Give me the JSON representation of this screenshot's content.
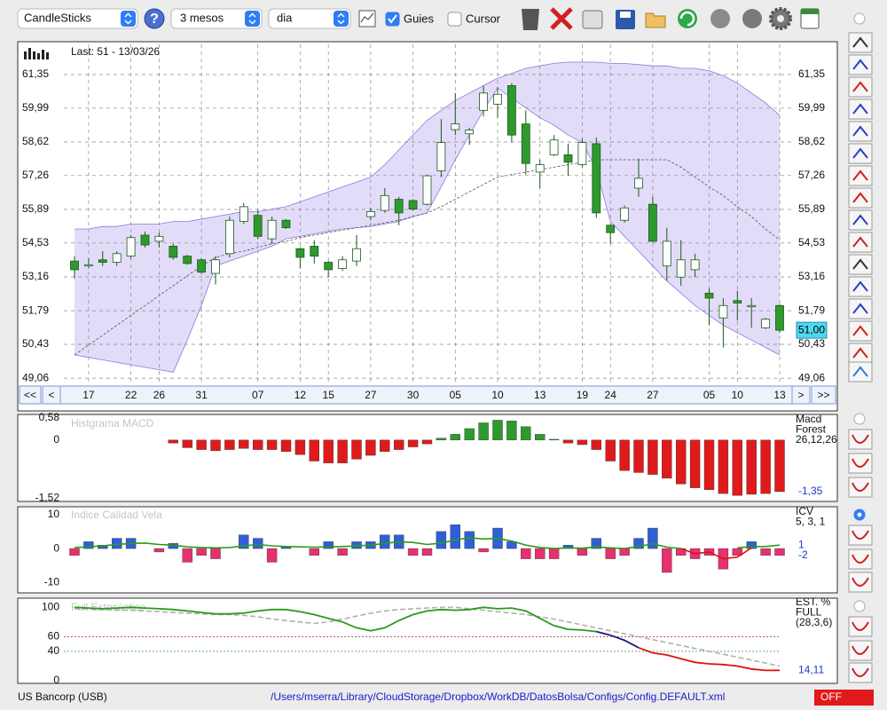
{
  "toolbar": {
    "chart_type": "CandleSticks",
    "help": "?",
    "period": "3 mesos",
    "interval": "dia",
    "guides": {
      "label": "Guies",
      "checked": true
    },
    "cursor": {
      "label": "Cursor",
      "checked": false
    }
  },
  "chart_data": [
    {
      "type": "candlestick",
      "title": "Last: 51 - 13/03/26",
      "categories": [
        null,
        "17",
        null,
        null,
        "22",
        null,
        "26",
        null,
        null,
        "31",
        null,
        null,
        null,
        "07",
        null,
        null,
        "12",
        null,
        "15",
        null,
        null,
        "27",
        null,
        null,
        "30",
        null,
        null,
        "05",
        null,
        null,
        "10",
        null,
        null,
        "13",
        null,
        null,
        "19",
        null,
        "24",
        null,
        null,
        "27",
        null,
        null,
        null,
        "05",
        null,
        "10",
        null,
        null,
        "13"
      ],
      "open": [
        53.8,
        53.6,
        53.85,
        53.75,
        54.0,
        54.85,
        54.6,
        54.4,
        54.0,
        53.85,
        53.3,
        54.1,
        55.4,
        55.65,
        54.7,
        55.45,
        54.3,
        54.4,
        53.75,
        53.5,
        53.8,
        55.6,
        55.85,
        56.3,
        56.25,
        56.1,
        57.45,
        59.12,
        58.95,
        59.9,
        60.15,
        60.9,
        59.35,
        57.4,
        58.1,
        58.1,
        57.7,
        58.55,
        55.25,
        55.45,
        56.75,
        56.1,
        53.6,
        53.15,
        53.45,
        52.5,
        51.5,
        52.2,
        51.95,
        51.1,
        52.0
      ],
      "high": [
        54.0,
        53.9,
        54.2,
        54.2,
        54.85,
        55.0,
        54.95,
        54.5,
        54.05,
        53.9,
        54.0,
        55.6,
        56.15,
        55.85,
        55.6,
        55.5,
        54.35,
        54.65,
        53.8,
        54.0,
        54.85,
        55.95,
        56.75,
        56.4,
        56.3,
        57.3,
        59.55,
        60.6,
        59.2,
        60.9,
        60.85,
        61.0,
        59.9,
        57.9,
        58.9,
        58.55,
        58.75,
        58.8,
        55.3,
        56.05,
        57.95,
        56.4,
        55.15,
        54.65,
        54.1,
        52.7,
        52.3,
        52.6,
        52.3,
        51.5,
        52.05
      ],
      "low": [
        53.1,
        53.5,
        53.6,
        53.6,
        53.9,
        54.35,
        54.35,
        53.85,
        53.65,
        53.3,
        52.85,
        53.95,
        55.3,
        54.7,
        54.5,
        55.1,
        53.5,
        53.7,
        53.15,
        53.4,
        53.6,
        55.45,
        55.75,
        55.25,
        55.85,
        56.05,
        57.2,
        58.9,
        58.5,
        59.65,
        59.6,
        58.6,
        57.3,
        56.75,
        58.05,
        57.25,
        57.6,
        55.55,
        54.5,
        55.35,
        56.4,
        54.55,
        53.0,
        52.8,
        53.15,
        51.2,
        50.3,
        51.4,
        51.1,
        51.05,
        50.9
      ],
      "close": [
        53.45,
        53.65,
        53.75,
        54.1,
        54.75,
        54.45,
        54.8,
        53.95,
        53.7,
        53.35,
        53.85,
        55.45,
        56.0,
        54.8,
        55.45,
        55.15,
        53.95,
        54.0,
        53.45,
        53.85,
        54.3,
        55.8,
        56.45,
        55.75,
        55.9,
        57.25,
        58.6,
        59.35,
        59.1,
        60.6,
        60.55,
        58.9,
        57.75,
        57.7,
        58.7,
        57.8,
        58.6,
        55.75,
        54.95,
        55.95,
        57.15,
        54.6,
        54.6,
        53.85,
        53.85,
        52.3,
        52.0,
        52.1,
        52.0,
        51.45,
        51.0
      ],
      "last_label": "51,00",
      "up_color": "#ffffff",
      "down_color": "#2e9a2e",
      "bands": {
        "color": "#b8a8f0",
        "upper": [
          55.1,
          55.1,
          55.2,
          55.2,
          55.3,
          55.3,
          55.3,
          55.4,
          55.4,
          55.5,
          55.6,
          55.7,
          55.8,
          55.8,
          55.9,
          56.0,
          56.2,
          56.4,
          56.6,
          56.8,
          57.0,
          57.2,
          57.7,
          58.3,
          58.9,
          59.5,
          59.9,
          60.3,
          60.6,
          60.9,
          61.2,
          61.4,
          61.6,
          61.7,
          61.8,
          61.85,
          61.85,
          61.85,
          61.8,
          61.8,
          61.75,
          61.7,
          61.7,
          61.6,
          61.6,
          61.5,
          61.3,
          61.0,
          60.6,
          60.2,
          59.7
        ],
        "lower": [
          50.0,
          49.9,
          49.8,
          49.7,
          49.6,
          49.5,
          49.4,
          49.3,
          50.6,
          52.0,
          53.6,
          53.8,
          54.0,
          54.2,
          54.4,
          54.7,
          54.8,
          54.9,
          55.0,
          55.1,
          55.15,
          55.2,
          55.3,
          55.4,
          55.6,
          55.75,
          56.8,
          57.9,
          58.9,
          59.9,
          60.8,
          60.4,
          60.0,
          59.6,
          59.3,
          58.9,
          58.6,
          57.5,
          55.4,
          54.8,
          54.2,
          53.6,
          53.0,
          52.5,
          52.0,
          51.6,
          51.2,
          50.9,
          50.6,
          50.3,
          50.0
        ],
        "middle": [
          50.0,
          50.4,
          50.8,
          51.2,
          51.6,
          52.0,
          52.4,
          52.8,
          53.2,
          53.6,
          53.95,
          54.1,
          54.2,
          54.35,
          54.5,
          54.6,
          54.75,
          54.85,
          54.95,
          55.05,
          55.15,
          55.25,
          55.35,
          55.45,
          55.6,
          55.75,
          56.0,
          56.3,
          56.6,
          56.9,
          57.2,
          57.3,
          57.4,
          57.5,
          57.6,
          57.7,
          57.8,
          57.9,
          57.9,
          57.9,
          57.9,
          57.9,
          57.9,
          57.6,
          57.2,
          56.8,
          56.45,
          56.0,
          55.6,
          55.1,
          54.65
        ]
      },
      "ylim": [
        48.92,
        62.57
      ],
      "yticks": [
        {
          "value": 61.35,
          "label": "61,35"
        },
        {
          "value": 59.99,
          "label": "59,99"
        },
        {
          "value": 58.62,
          "label": "58,62"
        },
        {
          "value": 57.26,
          "label": "57,26"
        },
        {
          "value": 55.89,
          "label": "55,89"
        },
        {
          "value": 54.53,
          "label": "54,53"
        },
        {
          "value": 53.16,
          "label": "53,16"
        },
        {
          "value": 51.79,
          "label": "51,79"
        },
        {
          "value": 50.43,
          "label": "50,43"
        },
        {
          "value": 49.06,
          "label": "49,06"
        }
      ],
      "grid": true,
      "nav": [
        "<<",
        "<",
        ">",
        ">>"
      ]
    },
    {
      "type": "bar",
      "title": "Histgrama MACD",
      "values": [
        0,
        0,
        0,
        0,
        0,
        0,
        0,
        -0.08,
        -0.2,
        -0.25,
        -0.28,
        -0.25,
        -0.22,
        -0.25,
        -0.25,
        -0.3,
        -0.38,
        -0.55,
        -0.6,
        -0.6,
        -0.5,
        -0.4,
        -0.3,
        -0.25,
        -0.18,
        -0.1,
        0.05,
        0.15,
        0.3,
        0.45,
        0.52,
        0.5,
        0.35,
        0.15,
        0.02,
        -0.08,
        -0.12,
        -0.25,
        -0.55,
        -0.8,
        -0.85,
        -0.9,
        -1.0,
        -1.15,
        -1.25,
        -1.3,
        -1.4,
        -1.45,
        -1.42,
        -1.4,
        -1.35
      ],
      "last_label": "-1,35",
      "pos_color": "#2e9a2e",
      "neg_color": "#e01a1a",
      "ylim": [
        -1.56,
        0.6
      ],
      "yticks": [
        {
          "value": 0.58,
          "label": "0,58"
        },
        0,
        {
          "value": -1.52,
          "label": "-1,52"
        }
      ],
      "grid": false,
      "side_labels": [
        "Macd",
        "Forest",
        "26,12,26"
      ]
    },
    {
      "type": "bar",
      "title": "Indice Calidad Vela",
      "values": [
        -2,
        2,
        1,
        3,
        3,
        0,
        -1,
        1.5,
        -4,
        -2,
        -3,
        0,
        4,
        3,
        -4,
        0.5,
        0,
        -2,
        2,
        -2,
        2,
        2,
        4,
        4,
        -2,
        -2,
        5,
        7,
        5,
        -1,
        6,
        2,
        -3,
        -3,
        -3,
        1,
        -2,
        3,
        -3,
        -2,
        3,
        6,
        -7,
        -2,
        -3,
        -2,
        -6,
        -2,
        2,
        -2,
        -2
      ],
      "last_label": "-2",
      "pos_color": "#2f5fd8",
      "neg_color": "#e8306e",
      "lines": [
        {
          "color": "#2a9a1a",
          "values": [
            0.3,
            0.5,
            0.8,
            1.2,
            1.5,
            1.6,
            1.2,
            1.0,
            0.5,
            0.3,
            0.2,
            0.3,
            0.8,
            1.2,
            0.8,
            0.6,
            0.5,
            0.4,
            0.5,
            0.6,
            0.8,
            1.0,
            1.5,
            2.0,
            1.8,
            1.2,
            1.6,
            2.5,
            3.2,
            2.8,
            3.0,
            2.2,
            1.0,
            0.3,
            0.0,
            0.2,
            0.1,
            0.5,
            0.2,
            0.0,
            0.6,
            1.4,
            0.4,
            0.0,
            null,
            null,
            null,
            0.2,
            0.6,
            0.6,
            1
          ],
          "last_label": "1"
        },
        {
          "color": "#e01010",
          "values": [
            null,
            null,
            null,
            null,
            null,
            null,
            null,
            null,
            null,
            null,
            null,
            null,
            null,
            null,
            null,
            null,
            null,
            null,
            null,
            null,
            null,
            null,
            null,
            null,
            null,
            null,
            null,
            null,
            null,
            null,
            null,
            null,
            null,
            null,
            null,
            null,
            null,
            null,
            null,
            null,
            null,
            null,
            null,
            0.0,
            -1.5,
            -1.0,
            -3.0,
            -2.5,
            0.2,
            null,
            null
          ]
        }
      ],
      "ylim": [
        -13,
        12
      ],
      "yticks": [
        10,
        0,
        -10
      ],
      "grid": false,
      "side_labels": [
        "ICV",
        "5, 3, 1"
      ]
    },
    {
      "type": "line",
      "title": "Full Estocástico",
      "series": [
        {
          "color": "#b0b0b0",
          "dash": true,
          "values": [
            98,
            98,
            97,
            96,
            96,
            95,
            94,
            93,
            92,
            91,
            90,
            90,
            89,
            87,
            84,
            82,
            80,
            78,
            80,
            84,
            88,
            92,
            95,
            97,
            98,
            99,
            100,
            100,
            98,
            96,
            94,
            92,
            90,
            87,
            84,
            80,
            76,
            72,
            68,
            64,
            60,
            56,
            52,
            48,
            44,
            40,
            36,
            32,
            28,
            24,
            20
          ]
        },
        {
          "color": "#2a9a1a",
          "values": [
            100,
            99,
            98,
            99,
            100,
            99,
            98,
            97,
            95,
            93,
            91,
            91,
            92,
            95,
            97,
            97,
            94,
            90,
            85,
            80,
            72,
            68,
            72,
            82,
            90,
            95,
            97,
            96,
            97,
            100,
            98,
            99,
            95,
            85,
            75,
            70,
            69,
            67,
            null,
            null,
            null,
            null,
            null,
            null,
            null,
            null,
            null,
            null,
            null,
            null,
            null
          ]
        },
        {
          "color": "#1a1a80",
          "values": [
            null,
            null,
            null,
            null,
            null,
            null,
            null,
            null,
            null,
            null,
            null,
            null,
            null,
            null,
            null,
            null,
            null,
            null,
            null,
            null,
            null,
            null,
            null,
            null,
            null,
            null,
            null,
            null,
            null,
            null,
            null,
            null,
            null,
            null,
            null,
            null,
            null,
            67,
            62,
            55,
            45,
            null,
            null,
            null,
            null,
            null,
            null,
            null,
            null,
            null,
            null
          ]
        },
        {
          "color": "#e01010",
          "last_label": "14,11",
          "values": [
            null,
            null,
            null,
            null,
            null,
            null,
            null,
            null,
            null,
            null,
            null,
            null,
            null,
            null,
            null,
            null,
            null,
            null,
            null,
            null,
            null,
            null,
            null,
            null,
            null,
            null,
            null,
            null,
            null,
            null,
            null,
            null,
            null,
            null,
            null,
            null,
            null,
            null,
            null,
            null,
            45,
            38,
            35,
            30,
            25,
            23,
            22,
            20,
            16,
            14,
            14.11
          ]
        }
      ],
      "ylim": [
        0,
        110
      ],
      "yticks": [
        100,
        60,
        40,
        0
      ],
      "grid": false,
      "tick_line_colors": [
        null,
        "#a03030",
        "#30a030",
        null
      ],
      "side_labels": [
        "EST. %",
        "FULL",
        "(28,3,6)"
      ]
    }
  ],
  "footer": {
    "symbol": "US Bancorp (USB)",
    "config_path": "/Users/mserra/Library/CloudStorage/Dropbox/WorkDB/DatosBolsa/Configs/Config.DEFAULT.xml",
    "status": "OFF"
  }
}
